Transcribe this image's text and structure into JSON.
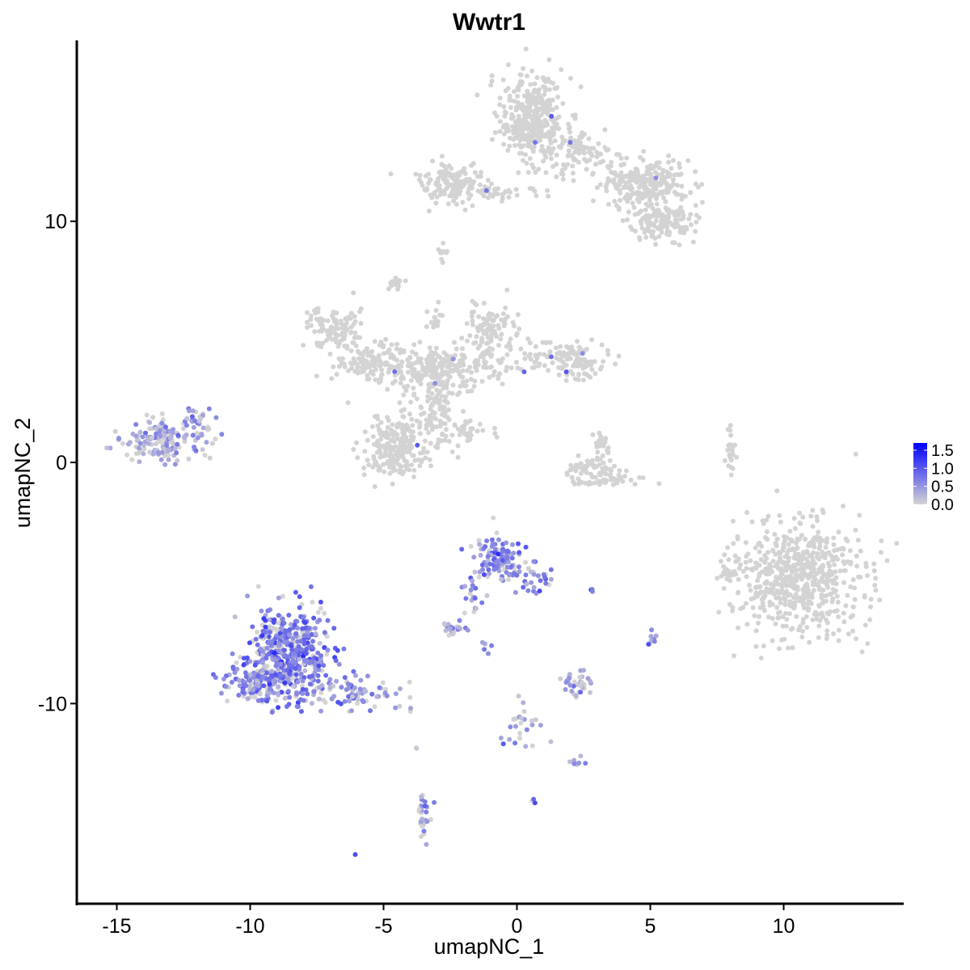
{
  "chart_data": {
    "type": "scatter",
    "title": "Wwtr1",
    "xlabel": "umapNC_1",
    "ylabel": "umapNC_2",
    "xlim": [
      -16.5,
      14.5
    ],
    "ylim": [
      -18.3,
      17.5
    ],
    "x_ticks": [
      -15,
      -10,
      -5,
      0,
      5,
      10
    ],
    "y_ticks": [
      -10,
      0,
      10
    ],
    "x_tick_labels": [
      "-15",
      "-10",
      "-5",
      "0",
      "5",
      "10"
    ],
    "y_tick_labels": [
      "-10",
      "0",
      "10"
    ],
    "grid": false,
    "legend": {
      "placement": "right",
      "ticks": [
        1.5,
        1.0,
        0.5,
        0.0
      ],
      "tick_labels": [
        "1.5",
        "1.0",
        "0.5",
        "0.0"
      ],
      "range": [
        0,
        1.7
      ]
    },
    "color_low": "#d3d3d3",
    "color_high": "#0000ff",
    "point_color_default": "#d3d3d3",
    "clusters": [
      {
        "cx": 0.6,
        "cy": 14.2,
        "sx": 0.6,
        "sy": 0.9,
        "n": 360,
        "expr": 0.0
      },
      {
        "cx": 4.8,
        "cy": 11.5,
        "sx": 0.8,
        "sy": 0.5,
        "n": 260,
        "expr": 0.0
      },
      {
        "cx": 5.4,
        "cy": 9.9,
        "sx": 0.6,
        "sy": 0.35,
        "n": 140,
        "expr": 0.0
      },
      {
        "cx": 2.4,
        "cy": 12.8,
        "sx": 0.6,
        "sy": 0.5,
        "n": 90,
        "expr": 0.0
      },
      {
        "cx": -2.4,
        "cy": 11.6,
        "sx": 0.7,
        "sy": 0.4,
        "n": 130,
        "expr": 0.0
      },
      {
        "cx": -0.5,
        "cy": 11.2,
        "sx": 1.0,
        "sy": 0.15,
        "n": 40,
        "expr": 0.0
      },
      {
        "cx": -2.8,
        "cy": 8.8,
        "sx": 0.1,
        "sy": 0.2,
        "n": 10,
        "expr": 0.0
      },
      {
        "cx": -4.5,
        "cy": 7.4,
        "sx": 0.15,
        "sy": 0.15,
        "n": 15,
        "expr": 0.0
      },
      {
        "cx": -6.8,
        "cy": 5.5,
        "sx": 0.5,
        "sy": 0.45,
        "n": 110,
        "expr": 0.0
      },
      {
        "cx": -5.4,
        "cy": 4.1,
        "sx": 0.7,
        "sy": 0.45,
        "n": 120,
        "expr": 0.0
      },
      {
        "cx": -3.5,
        "cy": 3.9,
        "sx": 0.8,
        "sy": 0.4,
        "n": 140,
        "expr": 0.0
      },
      {
        "cx": -4.3,
        "cy": 1.0,
        "sx": 0.6,
        "sy": 0.7,
        "n": 140,
        "expr": 0.0
      },
      {
        "cx": -4.8,
        "cy": 0.2,
        "sx": 0.5,
        "sy": 0.4,
        "n": 80,
        "expr": 0.0
      },
      {
        "cx": -3.0,
        "cy": 2.5,
        "sx": 0.35,
        "sy": 0.9,
        "n": 120,
        "expr": 0.0
      },
      {
        "cx": -1.6,
        "cy": 4.1,
        "sx": 0.7,
        "sy": 0.5,
        "n": 90,
        "expr": 0.0
      },
      {
        "cx": -1.8,
        "cy": 1.3,
        "sx": 0.5,
        "sy": 0.35,
        "n": 30,
        "expr": 0.0
      },
      {
        "cx": -1.0,
        "cy": 5.5,
        "sx": 0.45,
        "sy": 0.5,
        "n": 90,
        "expr": 0.0
      },
      {
        "cx": 1.5,
        "cy": 4.5,
        "sx": 0.9,
        "sy": 0.35,
        "n": 90,
        "expr": 0.0
      },
      {
        "cx": 2.3,
        "cy": 3.9,
        "sx": 0.5,
        "sy": 0.25,
        "n": 50,
        "expr": 0.0
      },
      {
        "cx": -3.1,
        "cy": 6.0,
        "sx": 0.15,
        "sy": 0.4,
        "n": 15,
        "expr": 0.0
      },
      {
        "cx": 3.2,
        "cy": 0.9,
        "sx": 0.15,
        "sy": 0.2,
        "n": 20,
        "expr": 0.0
      },
      {
        "cx": 2.8,
        "cy": -0.3,
        "sx": 0.5,
        "sy": 0.3,
        "n": 60,
        "expr": 0.0
      },
      {
        "cx": 3.7,
        "cy": -0.7,
        "sx": 0.6,
        "sy": 0.15,
        "n": 40,
        "expr": 0.0
      },
      {
        "cx": 8.0,
        "cy": 0.5,
        "sx": 0.1,
        "sy": 0.5,
        "n": 25,
        "expr": 0.0
      },
      {
        "cx": 10.6,
        "cy": -4.8,
        "sx": 1.1,
        "sy": 1.2,
        "n": 620,
        "expr": 0.0
      },
      {
        "cx": 8.0,
        "cy": -4.5,
        "sx": 0.2,
        "sy": 0.35,
        "n": 25,
        "expr": 0.0
      },
      {
        "cx": -13.2,
        "cy": 0.9,
        "sx": 0.8,
        "sy": 0.45,
        "n": 150,
        "expr": 0.35
      },
      {
        "cx": -12.0,
        "cy": 1.6,
        "sx": 0.3,
        "sy": 0.4,
        "n": 35,
        "expr": 0.45
      },
      {
        "cx": -8.5,
        "cy": -8.0,
        "sx": 0.8,
        "sy": 1.0,
        "n": 460,
        "expr": 0.7
      },
      {
        "cx": -9.6,
        "cy": -9.1,
        "sx": 0.6,
        "sy": 0.4,
        "n": 160,
        "expr": 0.65
      },
      {
        "cx": -5.9,
        "cy": -9.6,
        "sx": 0.8,
        "sy": 0.35,
        "n": 70,
        "expr": 0.5
      },
      {
        "cx": -0.6,
        "cy": -4.0,
        "sx": 0.5,
        "sy": 0.45,
        "n": 120,
        "expr": 0.7
      },
      {
        "cx": 0.8,
        "cy": -4.9,
        "sx": 0.3,
        "sy": 0.3,
        "n": 20,
        "expr": 0.6
      },
      {
        "cx": -1.6,
        "cy": -5.5,
        "sx": 0.25,
        "sy": 0.5,
        "n": 20,
        "expr": 0.6
      },
      {
        "cx": -2.4,
        "cy": -6.9,
        "sx": 0.2,
        "sy": 0.15,
        "n": 25,
        "expr": 0.4
      },
      {
        "cx": 2.3,
        "cy": -9.2,
        "sx": 0.3,
        "sy": 0.25,
        "n": 35,
        "expr": 0.35
      },
      {
        "cx": 0.2,
        "cy": -11.0,
        "sx": 0.4,
        "sy": 0.5,
        "n": 25,
        "expr": 0.3
      },
      {
        "cx": 2.2,
        "cy": -12.4,
        "sx": 0.2,
        "sy": 0.15,
        "n": 10,
        "expr": 0.35
      },
      {
        "cx": -3.5,
        "cy": -14.7,
        "sx": 0.12,
        "sy": 0.5,
        "n": 30,
        "expr": 0.45
      },
      {
        "cx": 5.1,
        "cy": -7.4,
        "sx": 0.08,
        "sy": 0.2,
        "n": 8,
        "expr": 0.5
      },
      {
        "cx": -1.2,
        "cy": -7.6,
        "sx": 0.2,
        "sy": 0.2,
        "n": 5,
        "expr": 0.45
      },
      {
        "cx": 0.6,
        "cy": -14.0,
        "sx": 0.05,
        "sy": 0.08,
        "n": 3,
        "expr": 1.0
      },
      {
        "cx": 2.8,
        "cy": -5.3,
        "sx": 0.08,
        "sy": 0.05,
        "n": 3,
        "expr": 1.0
      },
      {
        "cx": -6.0,
        "cy": -16.3,
        "sx": 0.04,
        "sy": 0.04,
        "n": 1,
        "expr": 0.8
      },
      {
        "cx": -3.8,
        "cy": -11.9,
        "sx": 0.05,
        "sy": 0.05,
        "n": 2,
        "expr": 0.3
      }
    ]
  }
}
